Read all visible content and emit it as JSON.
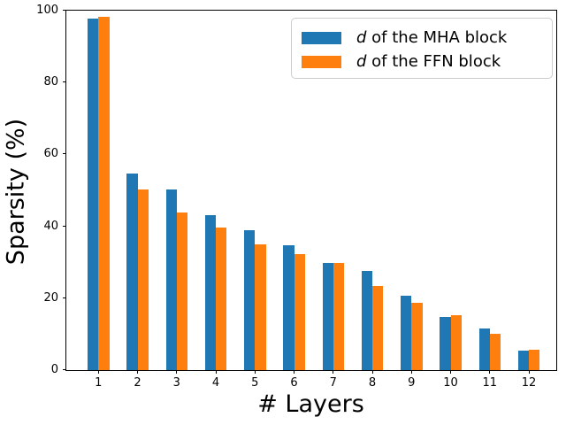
{
  "figure": {
    "background": "#ffffff",
    "axis_color": "#000000"
  },
  "chart_data": {
    "type": "bar",
    "title": "",
    "xlabel": "# Layers",
    "ylabel": "Sparsity (%)",
    "categories": [
      "1",
      "2",
      "3",
      "4",
      "5",
      "6",
      "7",
      "8",
      "9",
      "10",
      "11",
      "12"
    ],
    "series": [
      {
        "name": "d of the MHA block",
        "name_italic_prefix": "d",
        "name_rest": " of the MHA block",
        "color": "#1f77b4",
        "values": [
          97.5,
          54.5,
          50.0,
          43.0,
          38.8,
          34.6,
          29.8,
          27.5,
          20.5,
          14.7,
          11.5,
          5.4
        ]
      },
      {
        "name": "d of the FFN block",
        "name_italic_prefix": "d",
        "name_rest": " of the FFN block",
        "color": "#ff7f0e",
        "values": [
          98.0,
          50.2,
          43.8,
          39.4,
          34.9,
          32.1,
          29.7,
          23.3,
          18.5,
          15.1,
          9.9,
          5.5
        ]
      }
    ],
    "ylim": [
      0,
      100
    ],
    "yticks": [
      0,
      20,
      40,
      60,
      80,
      100
    ],
    "grid": false,
    "legend_position": "upper-right",
    "legend_border_color": "#cccccc"
  }
}
